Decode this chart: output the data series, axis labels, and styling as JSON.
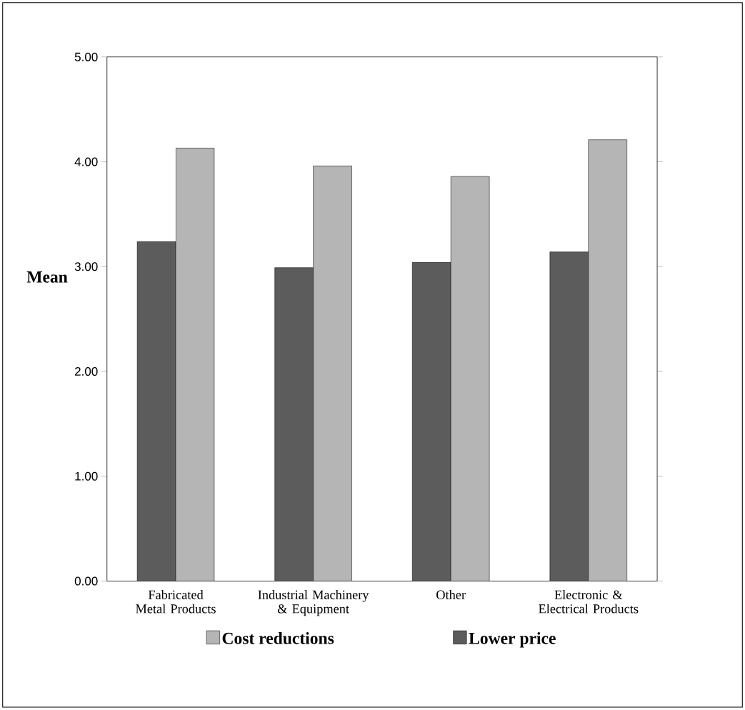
{
  "chart_data": {
    "type": "bar",
    "ylabel": "Mean",
    "categories": [
      "Fabricated Metal Products",
      "Industrial Machinery & Equipment",
      "Other",
      "Electronic & Electrical Products"
    ],
    "series": [
      {
        "name": "Lower price",
        "color": "#5c5c5c",
        "values": [
          3.24,
          2.99,
          3.04,
          3.14
        ]
      },
      {
        "name": "Cost reductions",
        "color": "#b5b5b5",
        "values": [
          4.13,
          3.96,
          3.86,
          4.21
        ]
      }
    ],
    "ylim": [
      0,
      5
    ],
    "yticks": [
      {
        "value": 0,
        "label": "0.00"
      },
      {
        "value": 1,
        "label": "1.00"
      },
      {
        "value": 2,
        "label": "2.00"
      },
      {
        "value": 3,
        "label": "3.00"
      },
      {
        "value": 4,
        "label": "4.00"
      },
      {
        "value": 5,
        "label": "5.00"
      }
    ],
    "legend": "bottom"
  }
}
